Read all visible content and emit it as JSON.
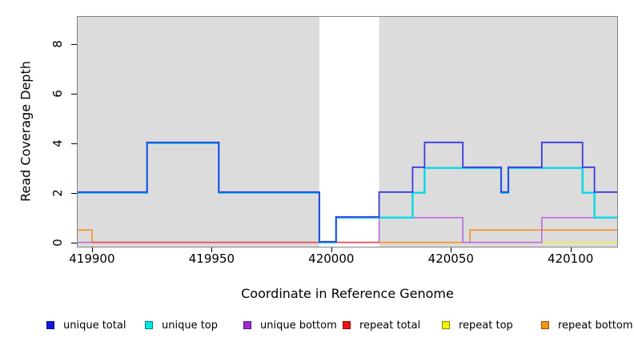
{
  "chart_data": {
    "type": "line",
    "subtype": "step",
    "title": "",
    "xlabel": "Coordinate in Reference Genome",
    "ylabel": "Read Coverage Depth",
    "xlim": [
      419894,
      420119.5
    ],
    "ylim": [
      0,
      9.06
    ],
    "x_ticks": [
      419900,
      419950,
      420000,
      420050,
      420100
    ],
    "y_ticks": [
      0,
      2,
      4,
      6,
      8
    ],
    "grid": false,
    "plot_bg": "#DCDCDC",
    "highlight_region": {
      "x0": 419995,
      "x1": 420020,
      "color": "#FFFFFF"
    },
    "legend_position": "bottom",
    "series": [
      {
        "name": "unique total",
        "color": "#1717E0",
        "line_color": "#3A3ADF",
        "width": 1.8,
        "dy": -0.9,
        "z": 6,
        "end": 420119.5,
        "steps": [
          [
            419894,
            2
          ],
          [
            419923,
            4
          ],
          [
            419953,
            2
          ],
          [
            419995,
            0
          ],
          [
            420002,
            1
          ],
          [
            420020,
            2
          ],
          [
            420034,
            3
          ],
          [
            420039,
            4
          ],
          [
            420055,
            3
          ],
          [
            420071,
            2
          ],
          [
            420074,
            3
          ],
          [
            420088,
            4
          ],
          [
            420105,
            3
          ],
          [
            420110,
            2
          ]
        ]
      },
      {
        "name": "unique top",
        "color": "#00E8E8",
        "line_color": "#00D9E6",
        "width": 2.4,
        "dy": 0,
        "z": 5,
        "end": 420119.5,
        "steps": [
          [
            419894,
            2
          ],
          [
            419923,
            4
          ],
          [
            419953,
            2
          ],
          [
            419995,
            0
          ],
          [
            420002,
            1
          ],
          [
            420034,
            2
          ],
          [
            420039,
            3
          ],
          [
            420071,
            2
          ],
          [
            420074,
            3
          ],
          [
            420105,
            2
          ],
          [
            420110,
            1
          ]
        ]
      },
      {
        "name": "unique bottom",
        "color": "#9B2BD3",
        "line_color": "#BC6BDF",
        "width": 1.6,
        "dy": 0,
        "z": 3,
        "end": 420119.5,
        "steps": [
          [
            419894,
            0
          ],
          [
            420020,
            1
          ],
          [
            420055,
            0
          ],
          [
            420088,
            1
          ]
        ]
      },
      {
        "name": "repeat total",
        "color": "#EE1111",
        "line_color": "#E84A52",
        "width": 1.6,
        "dy": 0,
        "z": 4,
        "end": 420020,
        "steps": [
          [
            419900,
            0
          ]
        ]
      },
      {
        "name": "repeat top",
        "color": "#F2F200",
        "line_color": "#EFEF3C",
        "width": 1.6,
        "dy": 0,
        "z": 1,
        "end": 420119.5,
        "steps": [
          [
            419894,
            0
          ]
        ]
      },
      {
        "name": "repeat bottom",
        "color": "#F59511",
        "line_color": "#FB8C22",
        "width": 1.6,
        "dy": 0,
        "z": 2,
        "end": 420119.5,
        "steps": [
          [
            419894,
            0.5
          ],
          [
            419900,
            0
          ],
          [
            420058,
            0.5
          ]
        ]
      }
    ]
  }
}
